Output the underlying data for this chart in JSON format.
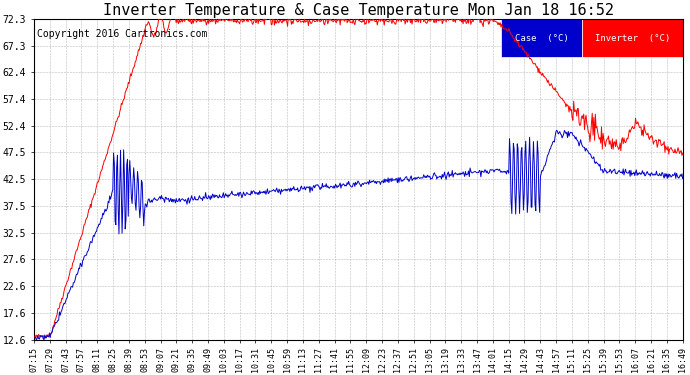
{
  "title": "Inverter Temperature & Case Temperature Mon Jan 18 16:52",
  "copyright": "Copyright 2016 Cartronics.com",
  "ylim": [
    12.6,
    72.3
  ],
  "yticks": [
    12.6,
    17.6,
    22.6,
    27.6,
    32.5,
    37.5,
    42.5,
    47.5,
    52.4,
    57.4,
    62.4,
    67.3,
    72.3
  ],
  "background_color": "#ffffff",
  "grid_color": "#bbbbbb",
  "inverter_color": "#ff0000",
  "case_color": "#0000cc",
  "legend_case_bg": "#0000cc",
  "legend_inverter_bg": "#ff0000",
  "legend_text_color": "#ffffff",
  "title_fontsize": 11,
  "copyright_fontsize": 7,
  "axis_fontsize": 7,
  "xtick_labels": [
    "07:15",
    "07:29",
    "07:43",
    "07:57",
    "08:11",
    "08:25",
    "08:39",
    "08:53",
    "09:07",
    "09:21",
    "09:35",
    "09:49",
    "10:03",
    "10:17",
    "10:31",
    "10:45",
    "10:59",
    "11:13",
    "11:27",
    "11:41",
    "11:55",
    "12:09",
    "12:23",
    "12:37",
    "12:51",
    "13:05",
    "13:19",
    "13:33",
    "13:47",
    "14:01",
    "14:15",
    "14:29",
    "14:43",
    "14:57",
    "15:11",
    "15:25",
    "15:39",
    "15:53",
    "16:07",
    "16:21",
    "16:35",
    "16:49"
  ]
}
